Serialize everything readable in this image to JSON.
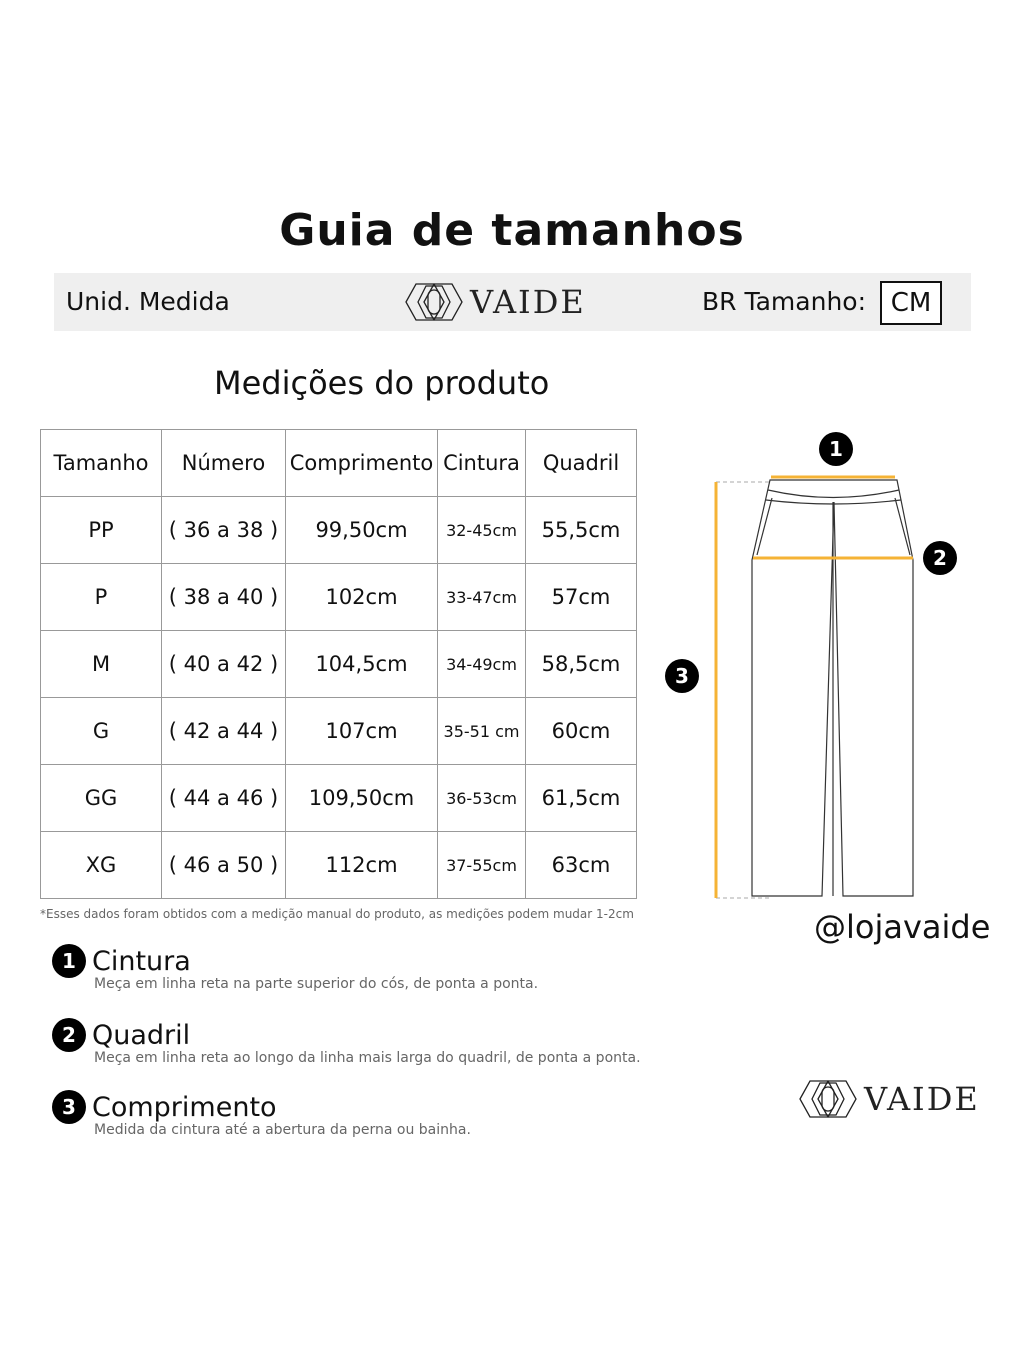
{
  "title": "Guia de tamanhos",
  "header": {
    "unit_label": "Unid. Medida",
    "brand": "VAIDE",
    "size_label": "BR Tamanho:",
    "unit_value": "CM"
  },
  "subtitle": "Medições do produto",
  "table": {
    "headers": [
      "Tamanho",
      "Número",
      "Comprimento",
      "Cintura",
      "Quadril"
    ],
    "rows": [
      [
        "PP",
        "( 36 a 38 )",
        "99,50cm",
        "32-45cm",
        "55,5cm"
      ],
      [
        "P",
        "( 38 a 40 )",
        "102cm",
        "33-47cm",
        "57cm"
      ],
      [
        "M",
        "( 40 a 42 )",
        "104,5cm",
        "34-49cm",
        "58,5cm"
      ],
      [
        "G",
        "( 42 a 44 )",
        "107cm",
        "35-51 cm",
        "60cm"
      ],
      [
        "GG",
        "( 44 a 46 )",
        "109,50cm",
        "36-53cm",
        "61,5cm"
      ],
      [
        "XG",
        "( 46 a 50 )",
        "112cm",
        "37-55cm",
        "63cm"
      ]
    ]
  },
  "note": "*Esses dados foram obtidos com a medição manual do produto, as medições podem mudar 1-2cm",
  "measures": [
    {
      "num": "1",
      "title": "Cintura",
      "desc": "Meça em linha reta na parte superior do cós, de ponta a ponta."
    },
    {
      "num": "2",
      "title": "Quadril",
      "desc": "Meça em linha reta ao longo da linha mais larga do quadril, de ponta a ponta."
    },
    {
      "num": "3",
      "title": "Comprimento",
      "desc": "Medida da cintura até a abertura da perna ou bainha."
    }
  ],
  "handle": "@lojavaide",
  "footer_brand": "VAIDE",
  "colors": {
    "accent": "#f5b335",
    "bar": "#efefef"
  }
}
